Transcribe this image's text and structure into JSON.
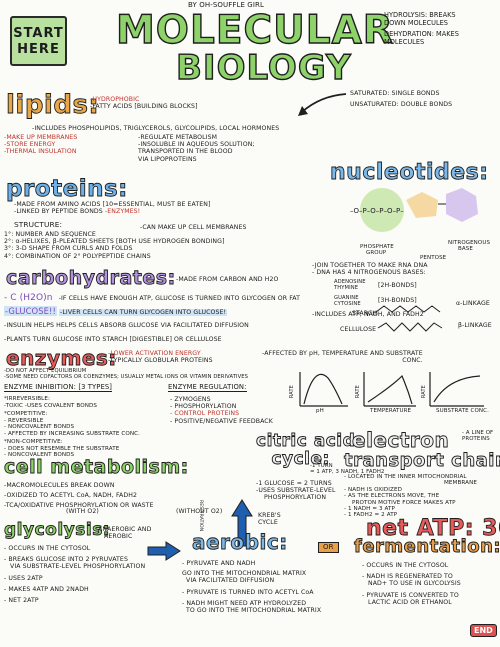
{
  "header": {
    "start_line1": "START",
    "start_line2": "HERE",
    "byline": "BY OH-SOUFFLE GIRL",
    "title_line1": "MOLECULAR",
    "title_line2": "BIOLOGY",
    "hydrolysis": "HYDROLYSIS: BREAKS",
    "hydrolysis2": "DOWN MOLECULES",
    "dehydration": "DEHYDRATION: MAKES",
    "dehydration2": "MOLECULES"
  },
  "lipids": {
    "title": "lipids:",
    "l1": "-HYDROPHOBIC",
    "l2": "-FATTY ACIDS [BUILDING BLOCKS]",
    "l3": "-INCLUDES PHOSPHOLIPIDS, TRIGLYCEROLS, GLYCOLIPIDS, LOCAL HORMONES",
    "l4": "-MAKE UP MEMBRANES",
    "l5": "-REGULATE METABOLISM",
    "l6": "-STORE ENERGY",
    "l7": "-INSOLUBLE IN AQUEOUS SOLUTION;",
    "l8": "-THERMAL INSULATION",
    "l9": "TRANSPORTED IN THE BLOOD",
    "l10": "VIA LIPOPROTEINS",
    "sat": "SATURATED: SINGLE BONDS",
    "unsat": "UNSATURATED: DOUBLE BONDS"
  },
  "nucleotides": {
    "title": "nucleotides:",
    "phosphate": "PHOSPHATE",
    "group": "GROUP",
    "pentose": "PENTOSE",
    "base": "NITROGENOUS",
    "base2": "BASE",
    "n1": "-JOIN TOGETHER TO MAKE RNA DNA",
    "n2": "- DNA HAS 4 NITROGENOUS BASES:",
    "adenine": "ADENOSINE",
    "thymine": "THYMINE",
    "guanine": "GUANINE",
    "cytosine": "CYTOSINE",
    "h2": "[2H-BONDS]",
    "h3": "[3H-BONDS]",
    "n3": "-INCLUDES ATP, NADH, AND FADH2"
  },
  "proteins": {
    "title": "proteins:",
    "p1": "-MADE FROM AMINO ACIDS [10=ESSENTIAL, MUST BE EATEN]",
    "p2": "-LINKED BY PEPTIDE BONDS",
    "p2b": "-ENZYMES!",
    "struct": "STRUCTURE:",
    "p3": "-CAN MAKE UP CELL MEMBRANES",
    "s1": "1°: NUMBER AND SEQUENCE",
    "s2": "2°: α-HELIXES, β-PLEATED SHEETS [BOTH USE HYDROGEN BONDING]",
    "s3": "3°: 3-D SHAPE FROM CURLS AND FOLDS",
    "s4": "4°: COMBINATION OF 2° POLYPEPTIDE CHAINS"
  },
  "carbs": {
    "title": "carbohydrates:",
    "c0": "-MADE FROM CARBON AND H2O",
    "c1": "- C (H2O)n",
    "c1b": "-IF CELLS HAVE ENOUGH ATP, GLUCOSE IS TURNED INTO GLYCOGEN OR FAT",
    "c2": "-GLUCOSE!!",
    "c2b": "-LIVER CELLS CAN TURN GLYCOGEN INTO GLUCOSE!",
    "starch": "STARCH",
    "alpha": "α-LINKAGE",
    "c3": "-INSULIN HELPS HELPS CELLS ABSORB GLUCOSE VIA FACILITATED DIFFUSION",
    "cellulose": "CELLULOSE",
    "beta": "β-LINKAGE",
    "c4": "-PLANTS TURN GLUCOSE INTO STARCH [DIGESTIBLE] OR CELLULOSE"
  },
  "enzymes": {
    "title": "enzymes:",
    "e1": "-LOWER ACTIVATION ENERGY",
    "e2": "-TYPICALLY GLOBULAR PROTEINS",
    "e3": "-AFFECTED BY pH, TEMPERATURE AND SUBSTRATE",
    "e3b": "CONC.",
    "e4": "-DO NOT AFFECT EQUILIBRIUM",
    "e5": "-SOME NEED COFACTORS OR COENZYMES; USUALLY METAL IONS OR VITAMIN DERIVATIVES",
    "rate": "RATE",
    "ph": "pH",
    "temp": "TEMPERATURE",
    "sub": "SUBSTRATE CONC.",
    "inh_title": "ENZYME INHIBITION: [3 TYPES]",
    "i1": "*IRREVERSIBLE:",
    "i2": "-TOXIC -USES COVALENT BONDS",
    "i3": "*COMPETITIVE:",
    "i4": "- REVERSIBLE",
    "i5": "- NONCOVALENT BONDS",
    "i6": "- AFFECTED BY INCREASING SUBSTRATE CONC.",
    "i7": "*NON-COMPETITIVE:",
    "i8": "- DOES NOT RESEMBLE THE SUBSTRATE",
    "i9": "- NONCOVALENT BONDS",
    "reg_title": "ENZYME REGULATION:",
    "r1": "- ZYMOGENS",
    "r2": "- PHOSPHORYLATION",
    "r3": "- CONTROL PROTEINS",
    "r4": "- POSITIVE/NEGATIVE FEEDBACK"
  },
  "metabolism": {
    "title": "cell metabolism:",
    "m1": "-MACROMOLECULES BREAK DOWN",
    "m2": "-OXIDIZED TO ACETYL CoA, NADH, FADH2",
    "m3": "-TCA/OXIDATIVE PHOSPHORYLATION OR WASTE",
    "m3a": "(WITH O2)",
    "m3b": "(WITHOUT O2)",
    "resp": "RESPIRATION"
  },
  "citric": {
    "title1": "citric acid",
    "title2": "cycle:",
    "c1": "-1 TURN",
    "c1b": "= 1 ATP, 3 NADH, 1 FADH2",
    "c2": "-1 GLUCOSE = 2 TURNS",
    "c3": "-USES SUBSTRATE-LEVEL",
    "c3b": "PHOSPHORYLATION",
    "krebs": "KREB'S",
    "krebs2": "CYCLE"
  },
  "etc": {
    "title1": "electron",
    "title2": "transport chain:",
    "side": "- A LINE OF",
    "side2": "PROTEINS",
    "e1": "- LOCATED IN THE INNER MITOCHONDRIAL",
    "e1b": "MEMBRANE",
    "e2": "- NADH IS OXIDIZED",
    "e3": "- AS THE ELECTRONS MOVE, THE",
    "e3b": "PROTON MOTIVE FORCE MAKES ATP",
    "e4": "- 1 NADH = 3 ATP",
    "e5": "- 1 FADH2 = 2 ATP",
    "net": "net ATP: 36!"
  },
  "glycolysis": {
    "title": "glycolysis:",
    "sub": "ANAEROBIC AND",
    "sub2": "AEROBIC",
    "g1": "- OCCURS IN THE CYTOSOL",
    "g2": "- BREAKS GLUCOSE INTO 2 PYRUVATES",
    "g2b": "VIA SUBSTRATE-LEVEL PHOSPHORYLATION",
    "g3": "- USES 2ATP",
    "g4": "- MAKES 4ATP AND 2NADH",
    "g5": "- NET 2ATP"
  },
  "aerobic": {
    "title": "aerobic:",
    "a1": "- PYRUVATE AND NADH",
    "a2": "GO INTO THE MITOCHONDRIAL MATRIX",
    "a3": "VIA FACILITATED DIFFUSION",
    "a4": "- PYRUVATE IS TURNED INTO ACETYL CoA",
    "a5": "- NADH MIGHT NEED ATP HYDROLYZED",
    "a6": "TO GO INTO THE MITOCHONDRIAL MATRIX"
  },
  "fermentation": {
    "or": "OR",
    "title": "fermentation:",
    "f1": "- OCCURS IN THE CYTOSOL",
    "f2": "- NADH IS REGENERATED TO",
    "f3": "NAD+ TO USE IN GLYCOLYSIS",
    "f4": "- PYRUVATE IS CONVERTED TO",
    "f5": "LACTIC ACID OR ETHANOL",
    "end": "END"
  }
}
